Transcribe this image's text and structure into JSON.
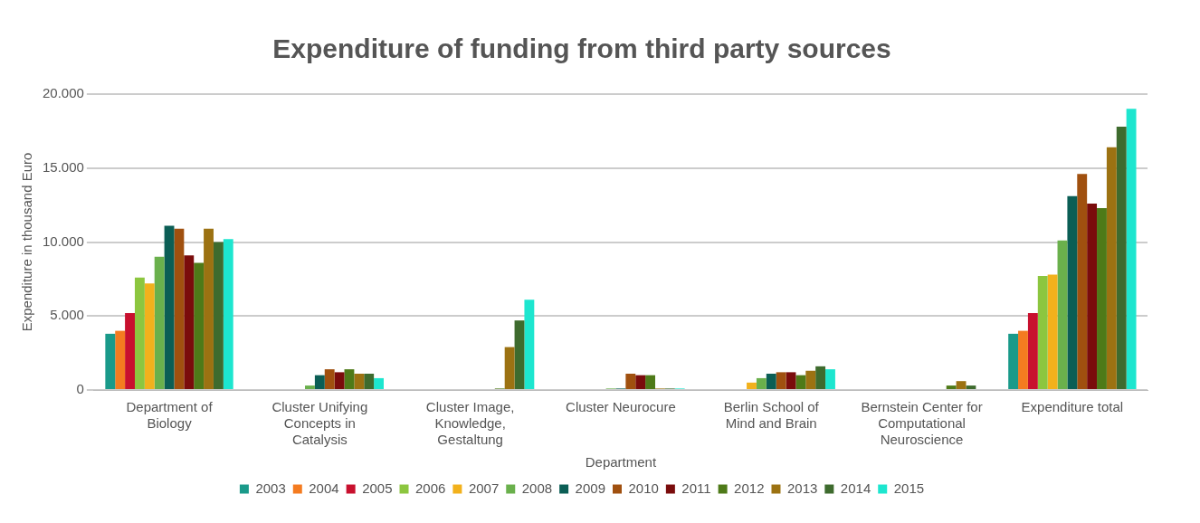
{
  "chart_data": {
    "type": "bar",
    "title": "Expenditure of funding from third party sources",
    "xlabel": "Department",
    "ylabel": "Expenditure in thousand Euro",
    "categories": [
      "Department of Biology",
      "Cluster Unifying Concepts in Catalysis",
      "Cluster Image, Knowledge, Gestaltung",
      "Cluster Neurocure",
      "Berlin School of Mind and Brain",
      "Bernstein Center for Computational Neuroscience",
      "Expenditure total"
    ],
    "ylim": [
      0,
      20000
    ],
    "yticks": [
      0,
      {
        "value": 5000,
        "label": "5.000"
      },
      {
        "value": 10000,
        "label": "10.000"
      },
      {
        "value": 15000,
        "label": "15.000"
      },
      {
        "value": 20000,
        "label": "20.000"
      }
    ],
    "grid": "y",
    "legend": "bottom",
    "series": [
      {
        "name": "2003",
        "color": "#1a9a8a",
        "values": [
          3800,
          null,
          null,
          null,
          null,
          null,
          3800
        ]
      },
      {
        "name": "2004",
        "color": "#f47b20",
        "values": [
          4000,
          null,
          null,
          null,
          null,
          null,
          4000
        ]
      },
      {
        "name": "2005",
        "color": "#c8102e",
        "values": [
          5200,
          null,
          null,
          null,
          null,
          null,
          5200
        ]
      },
      {
        "name": "2006",
        "color": "#8cc63f",
        "values": [
          7600,
          null,
          null,
          null,
          null,
          null,
          7700
        ]
      },
      {
        "name": "2007",
        "color": "#f2b11c",
        "values": [
          7200,
          null,
          null,
          null,
          500,
          null,
          7800
        ]
      },
      {
        "name": "2008",
        "color": "#6ab04c",
        "values": [
          9000,
          300,
          null,
          100,
          800,
          null,
          10100
        ]
      },
      {
        "name": "2009",
        "color": "#0b5e55",
        "values": [
          11100,
          1000,
          null,
          100,
          1100,
          null,
          13100
        ]
      },
      {
        "name": "2010",
        "color": "#a0500f",
        "values": [
          10900,
          1400,
          null,
          1100,
          1200,
          null,
          14600
        ]
      },
      {
        "name": "2011",
        "color": "#7a0c0c",
        "values": [
          9100,
          1200,
          null,
          1000,
          1200,
          null,
          12600
        ]
      },
      {
        "name": "2012",
        "color": "#4e7a18",
        "values": [
          8600,
          1400,
          100,
          1000,
          1000,
          300,
          12300
        ]
      },
      {
        "name": "2013",
        "color": "#9c7212",
        "values": [
          10900,
          1100,
          2900,
          100,
          1300,
          600,
          16400
        ]
      },
      {
        "name": "2014",
        "color": "#3e6b2e",
        "values": [
          10000,
          1100,
          4700,
          100,
          1600,
          300,
          17800
        ]
      },
      {
        "name": "2015",
        "color": "#1de6cf",
        "values": [
          10200,
          800,
          6100,
          100,
          1400,
          null,
          19000
        ]
      }
    ]
  }
}
